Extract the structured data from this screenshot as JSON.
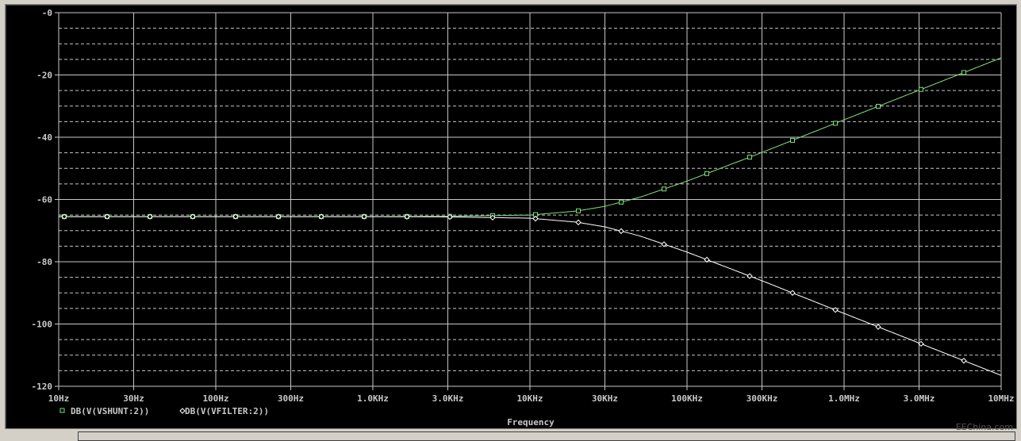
{
  "chart_data": {
    "type": "line",
    "xlabel": "Frequency",
    "ylabel": "",
    "x_scale": "log",
    "xlim": [
      10,
      10000000
    ],
    "ylim": [
      -120,
      0
    ],
    "grid": true,
    "legend_placement": "bottom-left",
    "x_ticks": [
      {
        "value": 10,
        "label": "10Hz"
      },
      {
        "value": 30,
        "label": "30Hz"
      },
      {
        "value": 100,
        "label": "100Hz"
      },
      {
        "value": 300,
        "label": "300Hz"
      },
      {
        "value": 1000,
        "label": "1.0KHz"
      },
      {
        "value": 3000,
        "label": "3.0KHz"
      },
      {
        "value": 10000,
        "label": "10KHz"
      },
      {
        "value": 30000,
        "label": "30KHz"
      },
      {
        "value": 100000,
        "label": "100KHz"
      },
      {
        "value": 300000,
        "label": "300KHz"
      },
      {
        "value": 1000000,
        "label": "1.0MHz"
      },
      {
        "value": 3000000,
        "label": "3.0MHz"
      },
      {
        "value": 10000000,
        "label": "10MHz"
      }
    ],
    "y_ticks": [
      {
        "value": 0,
        "label": "-0"
      },
      {
        "value": -20,
        "label": "-20"
      },
      {
        "value": -40,
        "label": "-40"
      },
      {
        "value": -60,
        "label": "-60"
      },
      {
        "value": -80,
        "label": "-80"
      },
      {
        "value": -100,
        "label": "-100"
      },
      {
        "value": -120,
        "label": "-120"
      }
    ],
    "x": [
      10,
      100,
      1000,
      3000,
      10000,
      20000,
      30000,
      50000,
      100000,
      300000,
      1000000,
      3000000,
      10000000
    ],
    "series": [
      {
        "name": "DB(V(VSHUNT:2))",
        "color": "#7ee07e",
        "marker": "square",
        "values": [
          -65.5,
          -65.5,
          -65.5,
          -65.4,
          -65.0,
          -63.7,
          -62.2,
          -59.3,
          -54.1,
          -44.9,
          -34.4,
          -24.9,
          -14.5
        ]
      },
      {
        "name": "DB(V(VFILTER:2))",
        "color": "#ffffff",
        "marker": "diamond",
        "values": [
          -65.5,
          -65.5,
          -65.5,
          -65.6,
          -66.0,
          -67.3,
          -68.8,
          -71.7,
          -76.9,
          -86.1,
          -96.6,
          -106.1,
          -116.5
        ]
      }
    ]
  },
  "watermark": "EEChina.com"
}
